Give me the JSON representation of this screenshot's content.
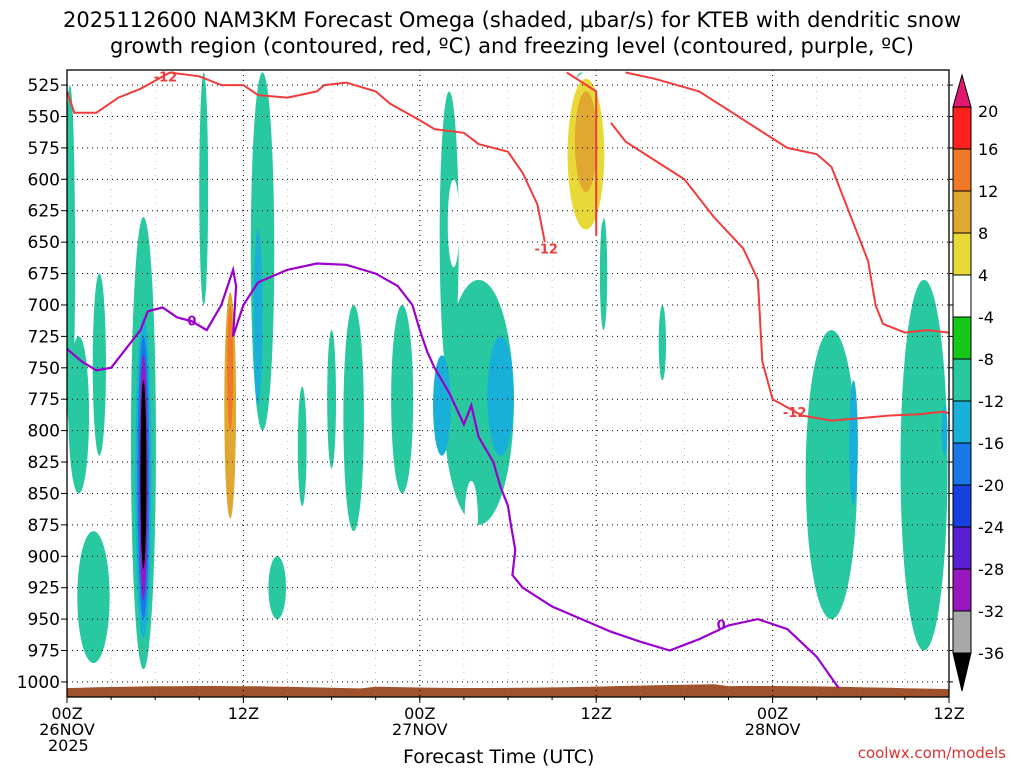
{
  "title": {
    "line1": "2025112600 NAM3KM Forecast Omega (shaded, μbar/s) for KTEB with dendritic snow",
    "line2": "growth region (contoured, red, ºC) and freezing level (contoured, purple, ºC)"
  },
  "credit": "coolwx.com/models",
  "year_label": "2025",
  "chart_data": {
    "type": "heatmap",
    "xlabel": "Forecast Time (UTC)",
    "ylabel": "",
    "x_ticks": [
      {
        "hour": 0,
        "label": "00Z",
        "date": "26NOV"
      },
      {
        "hour": 12,
        "label": "12Z",
        "date": ""
      },
      {
        "hour": 24,
        "label": "00Z",
        "date": "27NOV"
      },
      {
        "hour": 36,
        "label": "12Z",
        "date": ""
      },
      {
        "hour": 48,
        "label": "00Z",
        "date": "28NOV"
      },
      {
        "hour": 60,
        "label": "12Z",
        "date": ""
      }
    ],
    "xlim": [
      0,
      60
    ],
    "y_ticks": [
      525,
      550,
      575,
      600,
      625,
      650,
      675,
      700,
      725,
      750,
      775,
      800,
      825,
      850,
      875,
      900,
      925,
      950,
      975,
      1000
    ],
    "ylim": [
      1012,
      513
    ],
    "grid": true,
    "colorbar": {
      "labels": [
        "20",
        "16",
        "12",
        "8",
        "4",
        "-4",
        "-8",
        "-12",
        "-16",
        "-20",
        "-24",
        "-28",
        "-32",
        "-36"
      ],
      "colors": [
        "#ff2020",
        "#f07828",
        "#e0a830",
        "#e8d838",
        "#ffffff",
        "#18c818",
        "#28c8a0",
        "#18b0d8",
        "#1878e8",
        "#1840e0",
        "#5820d0",
        "#9818c0",
        "#a8a8a8"
      ],
      "top_arrow_color": "#e01870",
      "bottom_arrow_color": "#000000"
    },
    "omega_regions": [
      {
        "level": "-8",
        "t": 0.2,
        "p0": 525,
        "p1": 800,
        "w": 0.7
      },
      {
        "level": "-8",
        "t": 0.8,
        "p0": 725,
        "p1": 850,
        "w": 1.4
      },
      {
        "level": "-8",
        "t": 2.2,
        "p0": 675,
        "p1": 820,
        "w": 0.9
      },
      {
        "level": "-8",
        "t": 1.8,
        "p0": 880,
        "p1": 985,
        "w": 2.2
      },
      {
        "level": "-8",
        "t": 5.2,
        "p0": 630,
        "p1": 990,
        "w": 1.7
      },
      {
        "level": "-12",
        "t": 5.2,
        "p0": 710,
        "p1": 965,
        "w": 1.1
      },
      {
        "level": "-16",
        "t": 5.2,
        "p0": 725,
        "p1": 950,
        "w": 0.8
      },
      {
        "level": "-28",
        "t": 5.2,
        "p0": 740,
        "p1": 935,
        "w": 0.55
      },
      {
        "level": "-36",
        "t": 5.2,
        "p0": 760,
        "p1": 910,
        "w": 0.4
      },
      {
        "level": "-8",
        "t": 9.3,
        "p0": 515,
        "p1": 700,
        "w": 0.6
      },
      {
        "level": "-8",
        "t": 13.3,
        "p0": 515,
        "p1": 800,
        "w": 1.6
      },
      {
        "level": "-12",
        "t": 13.0,
        "p0": 640,
        "p1": 780,
        "w": 0.6
      },
      {
        "level": "-8",
        "t": 14.3,
        "p0": 900,
        "p1": 950,
        "w": 1.2
      },
      {
        "level": "-8",
        "t": 16.0,
        "p0": 765,
        "p1": 860,
        "w": 0.6
      },
      {
        "level": "-8",
        "t": 18.0,
        "p0": 720,
        "p1": 830,
        "w": 0.6
      },
      {
        "level": "-8",
        "t": 19.5,
        "p0": 700,
        "p1": 880,
        "w": 1.4
      },
      {
        "level": "-8",
        "t": 22.8,
        "p0": 700,
        "p1": 850,
        "w": 1.5
      },
      {
        "level": "-8",
        "t": 26.0,
        "p0": 530,
        "p1": 760,
        "w": 1.3
      },
      {
        "level": "-8",
        "t": 28.0,
        "p0": 680,
        "p1": 875,
        "w": 4.8
      },
      {
        "level": "-12",
        "t": 25.5,
        "p0": 740,
        "p1": 820,
        "w": 1.2
      },
      {
        "level": "-12",
        "t": 29.5,
        "p0": 725,
        "p1": 820,
        "w": 1.8
      },
      {
        "level": "-8",
        "t": 35.0,
        "p0": 515,
        "p1": 560,
        "w": 1.2
      },
      {
        "level": "-8",
        "t": 36.5,
        "p0": 630,
        "p1": 720,
        "w": 0.5
      },
      {
        "level": "-8",
        "t": 40.5,
        "p0": 700,
        "p1": 760,
        "w": 0.5
      },
      {
        "level": "-8",
        "t": 52.0,
        "p0": 720,
        "p1": 950,
        "w": 3.5
      },
      {
        "level": "-12",
        "t": 53.5,
        "p0": 760,
        "p1": 860,
        "w": 0.6
      },
      {
        "level": "-8",
        "t": 58.3,
        "p0": 680,
        "p1": 975,
        "w": 3.2
      },
      {
        "level": "-12",
        "t": 59.7,
        "p0": 780,
        "p1": 820,
        "w": 0.4
      },
      {
        "level": "4",
        "t": 4.0,
        "p0": 830,
        "p1": 880,
        "w": 0.7
      },
      {
        "level": "4",
        "t": 11.1,
        "p0": 680,
        "p1": 900,
        "w": 1.2
      },
      {
        "level": "12",
        "t": 11.1,
        "p0": 690,
        "p1": 870,
        "w": 0.8
      },
      {
        "level": "16",
        "t": 11.1,
        "p0": 700,
        "p1": 800,
        "w": 0.4
      },
      {
        "level": "4",
        "t": 26.3,
        "p0": 600,
        "p1": 670,
        "w": 0.8
      },
      {
        "level": "4",
        "t": 27.5,
        "p0": 840,
        "p1": 900,
        "w": 0.9
      },
      {
        "level": "4",
        "t": 31.6,
        "p0": 510,
        "p1": 555,
        "w": 0.8
      },
      {
        "level": "4",
        "t": 35.3,
        "p0": 515,
        "p1": 650,
        "w": 3.5
      },
      {
        "level": "8",
        "t": 35.3,
        "p0": 520,
        "p1": 640,
        "w": 2.5
      },
      {
        "level": "12",
        "t": 35.3,
        "p0": 530,
        "p1": 610,
        "w": 1.5
      },
      {
        "level": "4",
        "t": 42.3,
        "p0": 515,
        "p1": 545,
        "w": 0.4
      },
      {
        "level": "4",
        "t": 38.0,
        "p0": 840,
        "p1": 875,
        "w": 0.5
      },
      {
        "level": "4",
        "t": 42.2,
        "p0": 820,
        "p1": 900,
        "w": 0.5
      },
      {
        "level": "4",
        "t": 59.2,
        "p0": 515,
        "p1": 550,
        "w": 0.6
      }
    ],
    "isotherm_minus12": {
      "color": "#f03c3c",
      "label": "-12",
      "segments": [
        [
          [
            0,
            530
          ],
          [
            0.5,
            547
          ],
          [
            2,
            547
          ],
          [
            3.5,
            535
          ],
          [
            5,
            528
          ],
          [
            7,
            515
          ],
          [
            9,
            518
          ],
          [
            10.5,
            525
          ],
          [
            12,
            525
          ],
          [
            13,
            533
          ],
          [
            15,
            535
          ],
          [
            17,
            530
          ],
          [
            17.5,
            525
          ],
          [
            19,
            523
          ],
          [
            21,
            530
          ],
          [
            22,
            540
          ],
          [
            24,
            553
          ],
          [
            25,
            560
          ],
          [
            27,
            563
          ],
          [
            28,
            572
          ],
          [
            30,
            578
          ],
          [
            31,
            595
          ],
          [
            32,
            620
          ],
          [
            32.5,
            650
          ]
        ],
        [
          [
            34,
            515
          ],
          [
            36,
            530
          ],
          [
            36,
            560
          ],
          [
            36,
            600
          ],
          [
            36,
            645
          ]
        ],
        [
          [
            37,
            555
          ],
          [
            38,
            570
          ],
          [
            40,
            585
          ],
          [
            42,
            600
          ],
          [
            44,
            630
          ],
          [
            46,
            655
          ],
          [
            47,
            680
          ],
          [
            47.3,
            745
          ],
          [
            48,
            775
          ],
          [
            50,
            788
          ],
          [
            52,
            792
          ],
          [
            54,
            790
          ],
          [
            56,
            788
          ],
          [
            58,
            787
          ],
          [
            59.5,
            785
          ],
          [
            60,
            786
          ]
        ],
        [
          [
            38,
            515
          ],
          [
            40,
            520
          ],
          [
            43,
            530
          ],
          [
            45,
            545
          ],
          [
            47,
            560
          ],
          [
            49,
            575
          ],
          [
            51,
            580
          ],
          [
            52,
            590
          ],
          [
            53,
            620
          ],
          [
            54.5,
            665
          ],
          [
            55,
            700
          ],
          [
            55.5,
            715
          ],
          [
            57,
            722
          ],
          [
            58.5,
            720
          ],
          [
            60,
            722
          ]
        ]
      ]
    },
    "freezing_level_0C": {
      "color": "#9a00cc",
      "label": "0",
      "path": [
        [
          0,
          735
        ],
        [
          1,
          745
        ],
        [
          2,
          752
        ],
        [
          3,
          750
        ],
        [
          4,
          735
        ],
        [
          5,
          720
        ],
        [
          5.5,
          705
        ],
        [
          6.5,
          702
        ],
        [
          7.5,
          710
        ],
        [
          8.5,
          713
        ],
        [
          9.5,
          720
        ],
        [
          10.5,
          700
        ],
        [
          11.3,
          672
        ],
        [
          11.5,
          685
        ],
        [
          11.3,
          725
        ],
        [
          12,
          700
        ],
        [
          13,
          682
        ],
        [
          15,
          672
        ],
        [
          17,
          667
        ],
        [
          19,
          668
        ],
        [
          21,
          675
        ],
        [
          22.5,
          685
        ],
        [
          23.5,
          700
        ],
        [
          24,
          720
        ],
        [
          24.5,
          737
        ],
        [
          25,
          750
        ],
        [
          26,
          770
        ],
        [
          27,
          795
        ],
        [
          27.5,
          780
        ],
        [
          28,
          805
        ],
        [
          29,
          825
        ],
        [
          29.5,
          845
        ],
        [
          30,
          860
        ],
        [
          30.2,
          875
        ],
        [
          30.5,
          895
        ],
        [
          30.3,
          915
        ],
        [
          31,
          925
        ],
        [
          33,
          940
        ],
        [
          35,
          950
        ],
        [
          37,
          960
        ],
        [
          39,
          968
        ],
        [
          41,
          975
        ],
        [
          43,
          966
        ],
        [
          45,
          955
        ],
        [
          47,
          950
        ],
        [
          49,
          958
        ],
        [
          51,
          980
        ],
        [
          52.5,
          1005
        ]
      ]
    }
  }
}
